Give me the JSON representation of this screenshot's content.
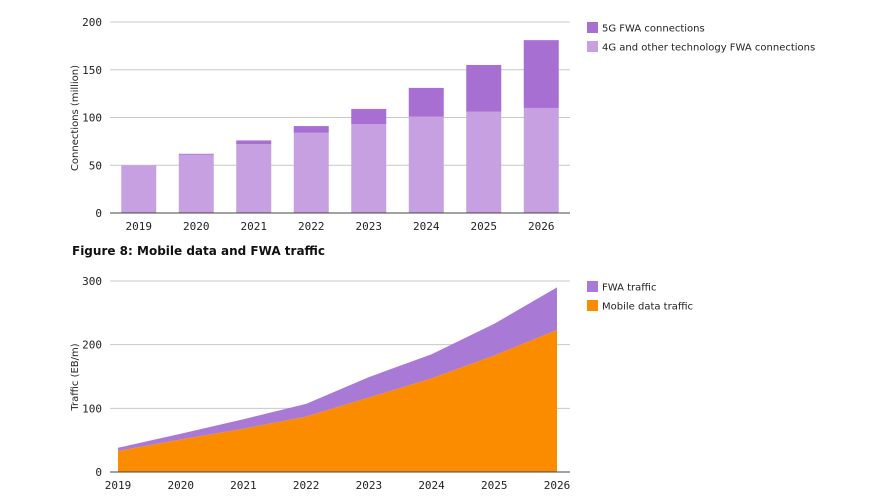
{
  "chart_data": [
    {
      "type": "bar",
      "stacked": true,
      "title": "",
      "xlabel": "",
      "ylabel": "Connections (million)",
      "ylim": [
        0,
        200
      ],
      "yticks": [
        0,
        50,
        100,
        150,
        200
      ],
      "categories": [
        "2019",
        "2020",
        "2021",
        "2022",
        "2023",
        "2024",
        "2025",
        "2026"
      ],
      "series": [
        {
          "name": "4G and other technology FWA connections",
          "color": "#c6a0e0",
          "values": [
            50,
            61,
            72,
            84,
            93,
            101,
            106,
            110
          ]
        },
        {
          "name": "5G FWA connections",
          "color": "#a76fd1",
          "values": [
            0,
            1,
            4,
            7,
            16,
            30,
            49,
            71
          ]
        }
      ],
      "legend_order": [
        "5G FWA connections",
        "4G and other technology FWA connections"
      ],
      "legend_position": "right"
    },
    {
      "type": "area",
      "stacked": true,
      "title": "Figure 8: Mobile data and FWA traffic",
      "xlabel": "",
      "ylabel": "Traffic (EB/m)",
      "ylim": [
        0,
        300
      ],
      "yticks": [
        0,
        100,
        200,
        300
      ],
      "categories": [
        "2019",
        "2020",
        "2021",
        "2022",
        "2023",
        "2024",
        "2025",
        "2026"
      ],
      "series": [
        {
          "name": "Mobile data traffic",
          "color": "#fb8c00",
          "values": [
            33,
            51,
            68,
            87,
            117,
            147,
            183,
            223
          ]
        },
        {
          "name": "FWA traffic",
          "color": "#a87ad6",
          "values": [
            5,
            9,
            15,
            20,
            32,
            38,
            50,
            67
          ]
        }
      ],
      "legend_order": [
        "FWA traffic",
        "Mobile data traffic"
      ],
      "legend_position": "right"
    }
  ]
}
